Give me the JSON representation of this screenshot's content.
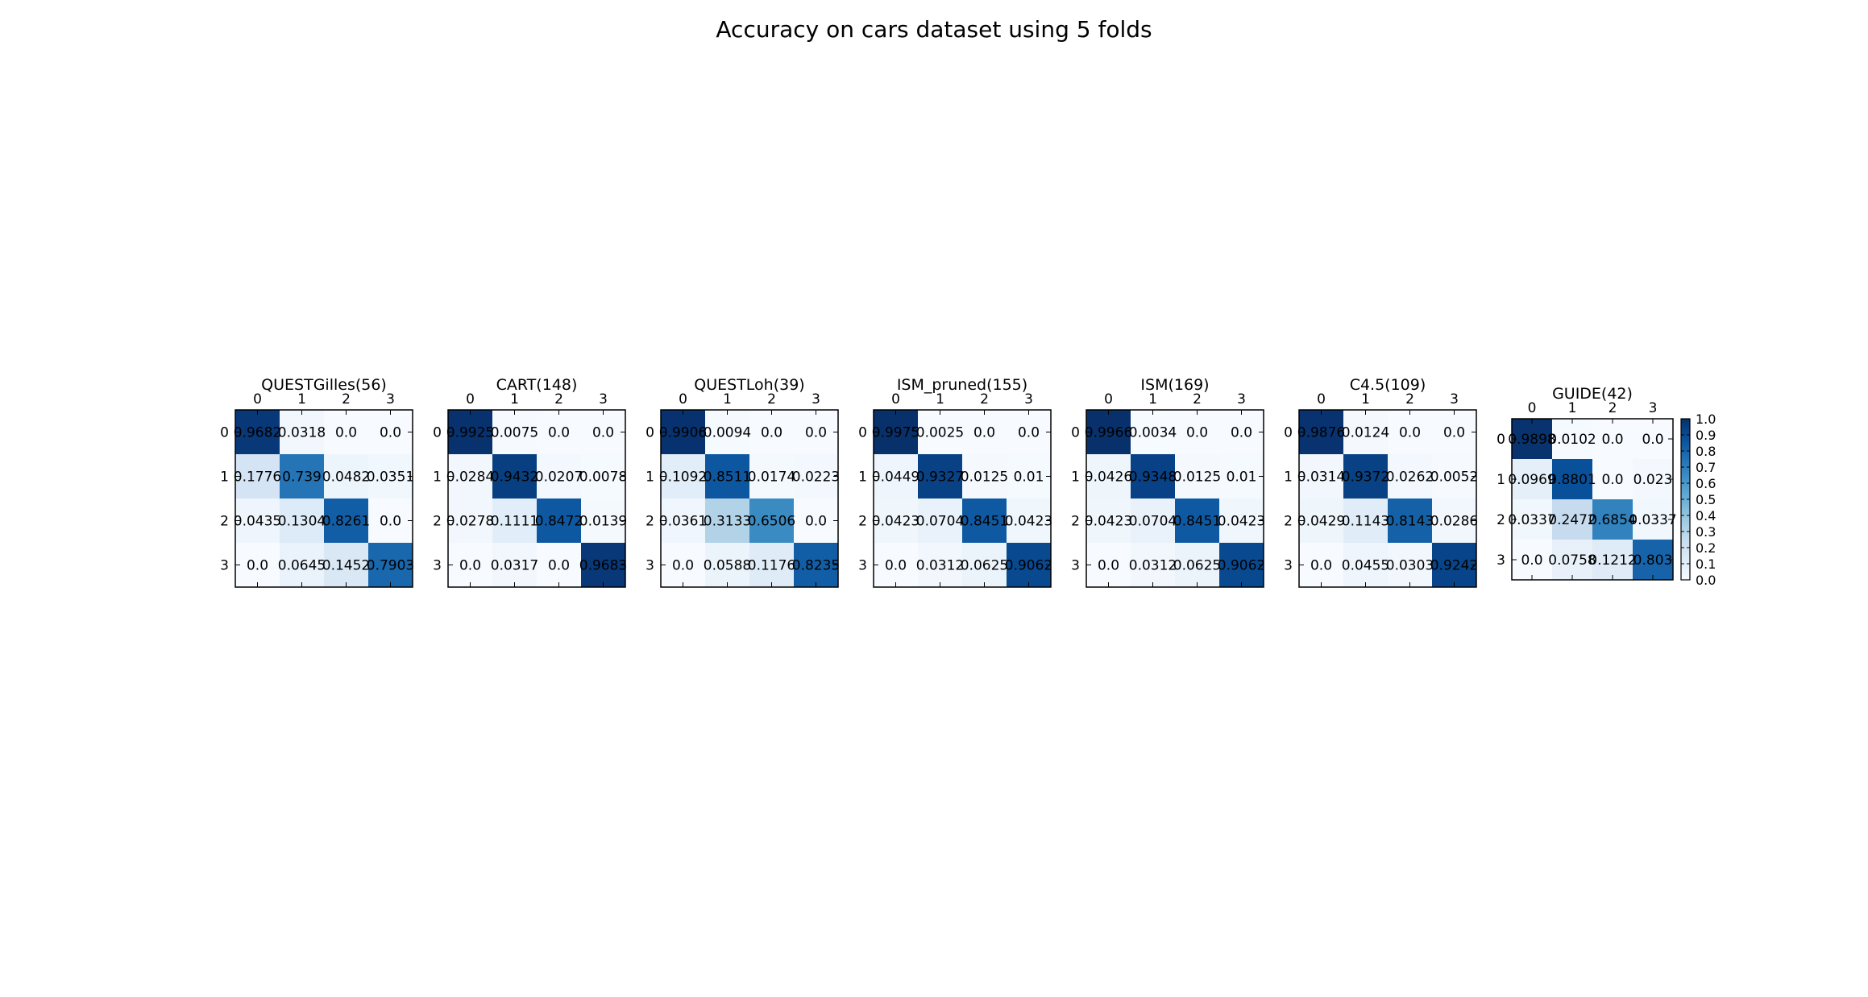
{
  "figure": {
    "title": "Accuracy on cars dataset using 5 folds"
  },
  "colorbar": {
    "ticks": [
      "0.0",
      "0.1",
      "0.2",
      "0.3",
      "0.4",
      "0.5",
      "0.6",
      "0.7",
      "0.8",
      "0.9",
      "1.0"
    ],
    "range": [
      0.0,
      1.0
    ],
    "colormap": "Blues"
  },
  "chart_data": [
    {
      "type": "heatmap",
      "title": "QUESTGilles(56)",
      "x_labels": [
        "0",
        "1",
        "2",
        "3"
      ],
      "y_labels": [
        "0",
        "1",
        "2",
        "3"
      ],
      "values": [
        [
          0.9682,
          0.0318,
          0.0,
          0.0
        ],
        [
          0.1776,
          0.739,
          0.0482,
          0.0351
        ],
        [
          0.0435,
          0.1304,
          0.8261,
          0.0
        ],
        [
          0.0,
          0.0645,
          0.1452,
          0.7903
        ]
      ],
      "labels": [
        [
          "0.9682",
          "0.0318",
          "0.0",
          "0.0"
        ],
        [
          "0.1776",
          "0.739",
          "0.0482",
          "0.0351"
        ],
        [
          "0.0435",
          "0.1304",
          "0.8261",
          "0.0"
        ],
        [
          "0.0",
          "0.0645",
          "0.1452",
          "0.7903"
        ]
      ]
    },
    {
      "type": "heatmap",
      "title": "CART(148)",
      "x_labels": [
        "0",
        "1",
        "2",
        "3"
      ],
      "y_labels": [
        "0",
        "1",
        "2",
        "3"
      ],
      "values": [
        [
          0.9925,
          0.0075,
          0.0,
          0.0
        ],
        [
          0.0284,
          0.9432,
          0.0207,
          0.0078
        ],
        [
          0.0278,
          0.1111,
          0.8472,
          0.0139
        ],
        [
          0.0,
          0.0317,
          0.0,
          0.9683
        ]
      ],
      "labels": [
        [
          "0.9925",
          "0.0075",
          "0.0",
          "0.0"
        ],
        [
          "0.0284",
          "0.9432",
          "0.0207",
          "0.0078"
        ],
        [
          "0.0278",
          "0.1111",
          "0.8472",
          "0.0139"
        ],
        [
          "0.0",
          "0.0317",
          "0.0",
          "0.9683"
        ]
      ]
    },
    {
      "type": "heatmap",
      "title": "QUESTLoh(39)",
      "x_labels": [
        "0",
        "1",
        "2",
        "3"
      ],
      "y_labels": [
        "0",
        "1",
        "2",
        "3"
      ],
      "values": [
        [
          0.9906,
          0.0094,
          0.0,
          0.0
        ],
        [
          0.1092,
          0.8511,
          0.0174,
          0.0223
        ],
        [
          0.0361,
          0.3133,
          0.6506,
          0.0
        ],
        [
          0.0,
          0.0588,
          0.1176,
          0.8235
        ]
      ],
      "labels": [
        [
          "0.9906",
          "0.0094",
          "0.0",
          "0.0"
        ],
        [
          "0.1092",
          "0.8511",
          "0.0174",
          "0.0223"
        ],
        [
          "0.0361",
          "0.3133",
          "0.6506",
          "0.0"
        ],
        [
          "0.0",
          "0.0588",
          "0.1176",
          "0.8235"
        ]
      ]
    },
    {
      "type": "heatmap",
      "title": "ISM_pruned(155)",
      "x_labels": [
        "0",
        "1",
        "2",
        "3"
      ],
      "y_labels": [
        "0",
        "1",
        "2",
        "3"
      ],
      "values": [
        [
          0.9975,
          0.0025,
          0.0,
          0.0
        ],
        [
          0.0449,
          0.9327,
          0.0125,
          0.01
        ],
        [
          0.0423,
          0.0704,
          0.8451,
          0.0423
        ],
        [
          0.0,
          0.0312,
          0.0625,
          0.9062
        ]
      ],
      "labels": [
        [
          "0.9975",
          "0.0025",
          "0.0",
          "0.0"
        ],
        [
          "0.0449",
          "0.9327",
          "0.0125",
          "0.01"
        ],
        [
          "0.0423",
          "0.0704",
          "0.8451",
          "0.0423"
        ],
        [
          "0.0",
          "0.0312",
          "0.0625",
          "0.9062"
        ]
      ]
    },
    {
      "type": "heatmap",
      "title": "ISM(169)",
      "x_labels": [
        "0",
        "1",
        "2",
        "3"
      ],
      "y_labels": [
        "0",
        "1",
        "2",
        "3"
      ],
      "values": [
        [
          0.9966,
          0.0034,
          0.0,
          0.0
        ],
        [
          0.0426,
          0.9348,
          0.0125,
          0.01
        ],
        [
          0.0423,
          0.0704,
          0.8451,
          0.0423
        ],
        [
          0.0,
          0.0312,
          0.0625,
          0.9062
        ]
      ],
      "labels": [
        [
          "0.9966",
          "0.0034",
          "0.0",
          "0.0"
        ],
        [
          "0.0426",
          "0.9348",
          "0.0125",
          "0.01"
        ],
        [
          "0.0423",
          "0.0704",
          "0.8451",
          "0.0423"
        ],
        [
          "0.0",
          "0.0312",
          "0.0625",
          "0.9062"
        ]
      ]
    },
    {
      "type": "heatmap",
      "title": "C4.5(109)",
      "x_labels": [
        "0",
        "1",
        "2",
        "3"
      ],
      "y_labels": [
        "0",
        "1",
        "2",
        "3"
      ],
      "values": [
        [
          0.9876,
          0.0124,
          0.0,
          0.0
        ],
        [
          0.0314,
          0.9372,
          0.0262,
          0.0052
        ],
        [
          0.0429,
          0.1143,
          0.8143,
          0.0286
        ],
        [
          0.0,
          0.0455,
          0.0303,
          0.9242
        ]
      ],
      "labels": [
        [
          "0.9876",
          "0.0124",
          "0.0",
          "0.0"
        ],
        [
          "0.0314",
          "0.9372",
          "0.0262",
          "0.0052"
        ],
        [
          "0.0429",
          "0.1143",
          "0.8143",
          "0.0286"
        ],
        [
          "0.0",
          "0.0455",
          "0.0303",
          "0.9242"
        ]
      ]
    },
    {
      "type": "heatmap",
      "title": "GUIDE(42)",
      "x_labels": [
        "0",
        "1",
        "2",
        "3"
      ],
      "y_labels": [
        "0",
        "1",
        "2",
        "3"
      ],
      "values": [
        [
          0.9898,
          0.0102,
          0.0,
          0.0
        ],
        [
          0.0969,
          0.8801,
          0.0,
          0.023
        ],
        [
          0.0337,
          0.2472,
          0.6854,
          0.0337
        ],
        [
          0.0,
          0.0758,
          0.1212,
          0.803
        ]
      ],
      "labels": [
        [
          "0.9898",
          "0.0102",
          "0.0",
          "0.0"
        ],
        [
          "0.0969",
          "0.8801",
          "0.0",
          "0.023"
        ],
        [
          "0.0337",
          "0.2472",
          "0.6854",
          "0.0337"
        ],
        [
          "0.0",
          "0.0758",
          "0.1212",
          "0.803"
        ]
      ]
    }
  ]
}
